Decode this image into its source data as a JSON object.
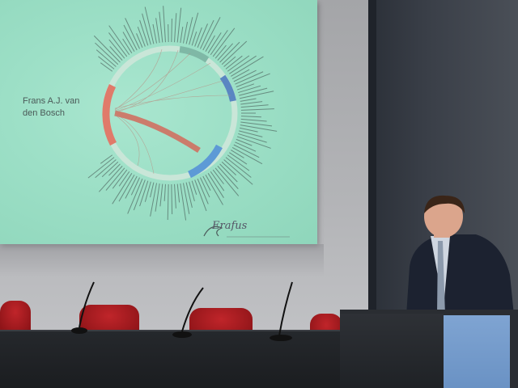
{
  "slide": {
    "title_line1": "Frans A.J. van",
    "title_line2": "den Bosch",
    "logo_text": "Erafus"
  },
  "colors": {
    "slide_background": "#9cdfc6",
    "highlight_arc": "#e07a6a",
    "secondary_arc": "#5d9ad6",
    "chairs": "#b51f24",
    "podium_panel": "#7fa4d2"
  }
}
